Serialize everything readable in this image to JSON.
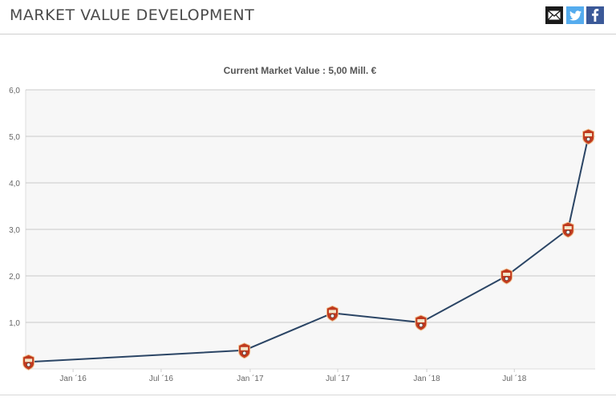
{
  "header": {
    "title": "MARKET VALUE DEVELOPMENT",
    "share_icons": [
      "email-icon",
      "twitter-icon",
      "facebook-icon"
    ]
  },
  "colors": {
    "line": "#2b4565",
    "plot_bg": "#f7f7f7",
    "grid": "#c8c8c8",
    "marker_fill": "#c03a1e",
    "marker_stroke": "#f0c090"
  },
  "chart_data": {
    "type": "line",
    "title": "Current Market Value : 5,00 Mill. €",
    "xlabel": "",
    "ylabel": "",
    "ylim": [
      0,
      6
    ],
    "yticks": [
      "1,0",
      "2,0",
      "3,0",
      "4,0",
      "5,0",
      "6,0"
    ],
    "xticks": [
      "Jan ´16",
      "Jul ´16",
      "Jan ´17",
      "Jul ´17",
      "Jan ´18",
      "Jul ´18"
    ],
    "xtick_dates": [
      "2016-01-01",
      "2016-07-01",
      "2017-01-01",
      "2017-07-01",
      "2018-01-01",
      "2018-07-01"
    ],
    "xlim": [
      "2015-09-25",
      "2018-12-15"
    ],
    "grid": true,
    "legend": false,
    "series": [
      {
        "x": [
          "2015-10-01",
          "2016-12-20",
          "2017-06-20",
          "2017-12-20",
          "2018-06-15",
          "2018-10-20",
          "2018-12-01"
        ],
        "values": [
          0.15,
          0.4,
          1.2,
          1.0,
          2.0,
          3.0,
          5.0
        ]
      }
    ]
  }
}
